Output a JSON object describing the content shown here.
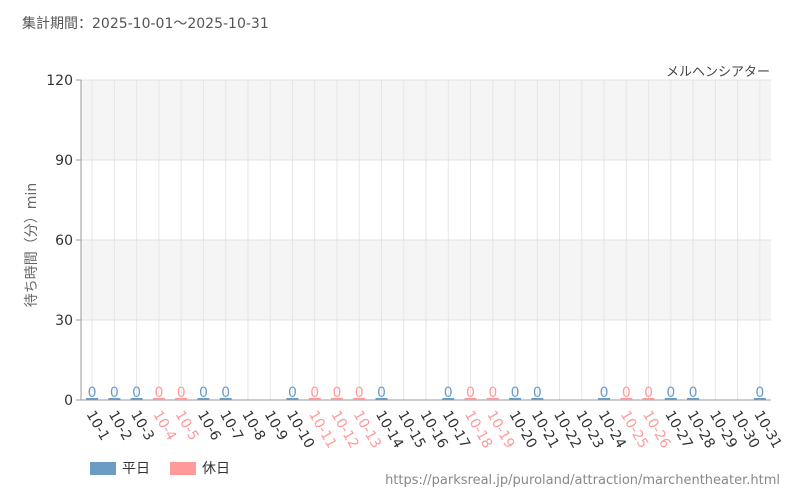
{
  "header": {
    "period_label": "集計期間：2025-10-01～2025-10-31"
  },
  "footer": {
    "source_url": "https://parksreal.jp/puroland/attraction/marchentheater.html"
  },
  "colors": {
    "weekday": "#6a9cc6",
    "holiday": "#ff9a9a",
    "weekend_band": "#f5f5f5",
    "axis_text": "#333333"
  },
  "chart_data": {
    "type": "bar",
    "title": "メルヘンシアター",
    "ylabel": "待ち時間（分）min",
    "xlabel": "",
    "ylim": [
      0,
      120
    ],
    "yticks": [
      0,
      30,
      60,
      90,
      120
    ],
    "grid": true,
    "legend_position": "bottom-left",
    "categories": [
      "10-1",
      "10-2",
      "10-3",
      "10-4",
      "10-5",
      "10-6",
      "10-7",
      "10-8",
      "10-9",
      "10-10",
      "10-11",
      "10-12",
      "10-13",
      "10-14",
      "10-15",
      "10-16",
      "10-17",
      "10-18",
      "10-19",
      "10-20",
      "10-21",
      "10-22",
      "10-23",
      "10-24",
      "10-25",
      "10-26",
      "10-27",
      "10-28",
      "10-29",
      "10-30",
      "10-31"
    ],
    "day_types": [
      "weekday",
      "weekday",
      "weekday",
      "holiday",
      "holiday",
      "weekday",
      "weekday",
      "weekday",
      "weekday",
      "weekday",
      "holiday",
      "holiday",
      "holiday",
      "weekday",
      "weekday",
      "weekday",
      "weekday",
      "holiday",
      "holiday",
      "weekday",
      "weekday",
      "weekday",
      "weekday",
      "weekday",
      "holiday",
      "holiday",
      "weekday",
      "weekday",
      "weekday",
      "weekday",
      "weekday"
    ],
    "values": [
      0,
      0,
      0,
      0,
      0,
      0,
      0,
      null,
      null,
      0,
      0,
      0,
      0,
      0,
      null,
      null,
      0,
      0,
      0,
      0,
      0,
      null,
      null,
      0,
      0,
      0,
      0,
      0,
      null,
      null,
      0
    ],
    "data_labels": [
      "0",
      "0",
      "0",
      "0",
      "0",
      "0",
      "0",
      "",
      "",
      "0",
      "0",
      "0",
      "0",
      "0",
      "",
      "",
      "0",
      "0",
      "0",
      "0",
      "0",
      "",
      "",
      "0",
      "0",
      "0",
      "0",
      "0",
      "",
      "",
      "0"
    ],
    "series": [
      {
        "name": "平日",
        "key": "weekday"
      },
      {
        "name": "休日",
        "key": "holiday"
      }
    ]
  }
}
